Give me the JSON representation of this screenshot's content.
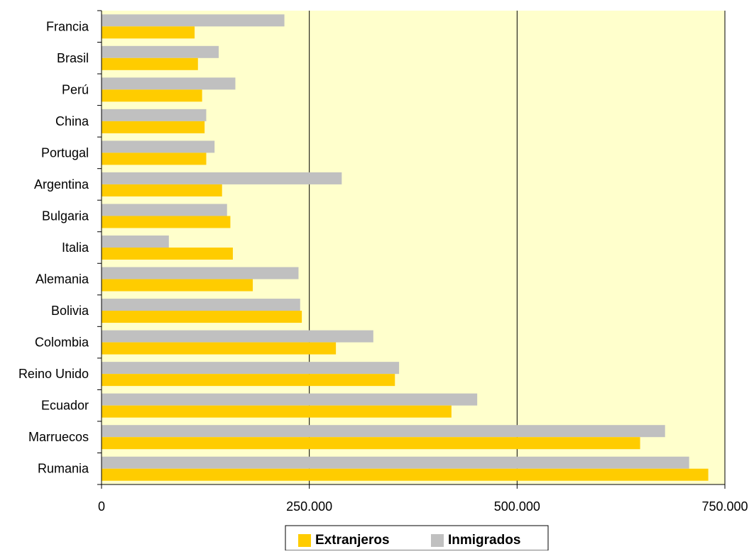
{
  "chart_data": {
    "type": "bar",
    "orientation": "horizontal",
    "title": "",
    "xlabel": "",
    "ylabel": "",
    "categories": [
      "Francia",
      "Brasil",
      "Perú",
      "China",
      "Portugal",
      "Argentina",
      "Bulgaria",
      "Italia",
      "Alemania",
      "Bolivia",
      "Colombia",
      "Reino Unido",
      "Ecuador",
      "Marruecos",
      "Rumania"
    ],
    "series": [
      {
        "name": "Extranjeros",
        "color": "#FFCC00",
        "values": [
          112000,
          116000,
          121000,
          124000,
          126000,
          145000,
          155000,
          158000,
          182000,
          241000,
          282000,
          353000,
          421000,
          648000,
          730000
        ]
      },
      {
        "name": "Inmigrados",
        "color": "#C0C0C0",
        "values": [
          220000,
          141000,
          161000,
          126000,
          136000,
          289000,
          151000,
          81000,
          237000,
          239000,
          327000,
          358000,
          452000,
          678000,
          707000
        ]
      }
    ],
    "xlim": [
      0,
      750000
    ],
    "x_ticks": [
      "0",
      "250.000",
      "500.000",
      "750.000"
    ],
    "x_tick_values": [
      0,
      250000,
      500000,
      750000
    ],
    "grid": "vertical",
    "plot_background": "#FFFFCC",
    "legend_position": "bottom"
  }
}
